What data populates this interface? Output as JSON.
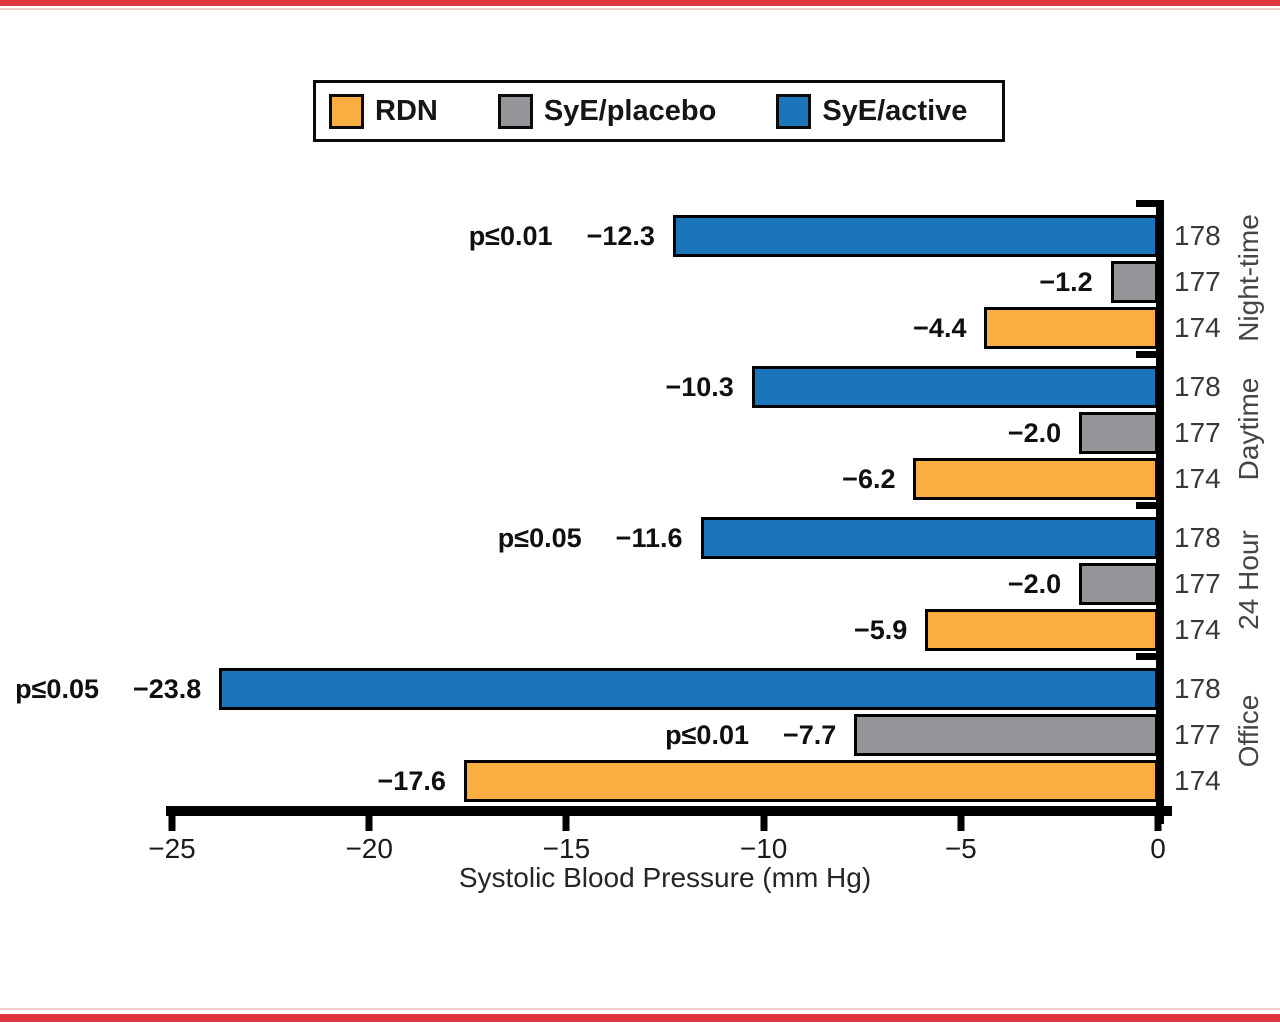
{
  "page": {
    "background": "#FFFFFF",
    "accent_red": "#DE3540",
    "accent_red_light": "#F5CCCE"
  },
  "legend": {
    "items": [
      {
        "label": "RDN",
        "color": "#FAAE42"
      },
      {
        "label": "SyE/placebo",
        "color": "#939598"
      },
      {
        "label": "SyE/active",
        "color": "#1B75BB"
      }
    ]
  },
  "chart_data": {
    "type": "bar",
    "orientation": "horizontal",
    "title": "",
    "xlabel": "Systolic Blood Pressure (mm Hg)",
    "ylabel": "",
    "xlim": [
      -25,
      0
    ],
    "grid": false,
    "legend_position": "top-center",
    "bar_border_color": "#000000",
    "series": [
      "SyE/active",
      "SyE/placebo",
      "RDN"
    ],
    "series_colors": {
      "SyE/active": "#1B75BB",
      "SyE/placebo": "#939598",
      "RDN": "#FAAE42"
    },
    "x_ticks": [
      {
        "v": -25,
        "label": "−25"
      },
      {
        "v": -20,
        "label": "−20"
      },
      {
        "v": -15,
        "label": "−15"
      },
      {
        "v": -10,
        "label": "−10"
      },
      {
        "v": -5,
        "label": "−5"
      },
      {
        "v": 0,
        "label": "0"
      }
    ],
    "groups": [
      {
        "category": "Night-time",
        "bars": [
          {
            "series": "SyE/active",
            "value": -12.3,
            "value_label": "−12.3",
            "p_label": "p≤0.01",
            "n": "178"
          },
          {
            "series": "SyE/placebo",
            "value": -1.2,
            "value_label": "−1.2",
            "p_label": "",
            "n": "177"
          },
          {
            "series": "RDN",
            "value": -4.4,
            "value_label": "−4.4",
            "p_label": "",
            "n": "174"
          }
        ]
      },
      {
        "category": "Daytime",
        "bars": [
          {
            "series": "SyE/active",
            "value": -10.3,
            "value_label": "−10.3",
            "p_label": "",
            "n": "178"
          },
          {
            "series": "SyE/placebo",
            "value": -2.0,
            "value_label": "−2.0",
            "p_label": "",
            "n": "177"
          },
          {
            "series": "RDN",
            "value": -6.2,
            "value_label": "−6.2",
            "p_label": "",
            "n": "174"
          }
        ]
      },
      {
        "category": "24 Hour",
        "bars": [
          {
            "series": "SyE/active",
            "value": -11.6,
            "value_label": "−11.6",
            "p_label": "p≤0.05",
            "n": "178"
          },
          {
            "series": "SyE/placebo",
            "value": -2.0,
            "value_label": "−2.0",
            "p_label": "",
            "n": "177"
          },
          {
            "series": "RDN",
            "value": -5.9,
            "value_label": "−5.9",
            "p_label": "",
            "n": "174"
          }
        ]
      },
      {
        "category": "Office",
        "bars": [
          {
            "series": "SyE/active",
            "value": -23.8,
            "value_label": "−23.8",
            "p_label": "p≤0.05",
            "n": "178"
          },
          {
            "series": "SyE/placebo",
            "value": -7.7,
            "value_label": "−7.7",
            "p_label": "p≤0.01",
            "n": "177"
          },
          {
            "series": "RDN",
            "value": -17.6,
            "value_label": "−17.6",
            "p_label": "",
            "n": "174"
          }
        ]
      }
    ]
  }
}
